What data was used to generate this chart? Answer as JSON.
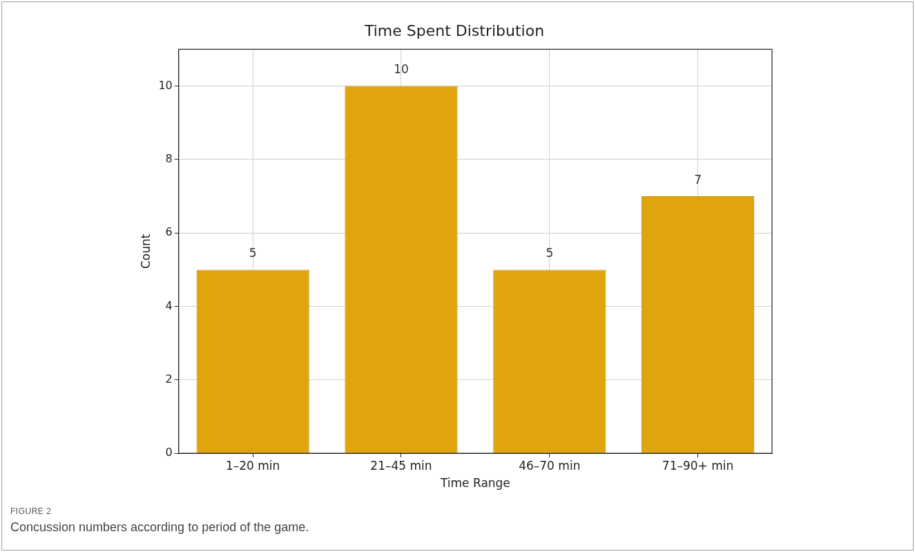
{
  "chart_data": {
    "type": "bar",
    "title": "Time Spent Distribution",
    "xlabel": "Time Range",
    "ylabel": "Count",
    "categories": [
      "1–20 min",
      "21–45 min",
      "46–70 min",
      "71–90+ min"
    ],
    "values": [
      5,
      10,
      5,
      7
    ],
    "color": "#e0a40c",
    "ylim": [
      0,
      11
    ],
    "yticks": [
      0,
      2,
      4,
      6,
      8,
      10
    ],
    "grid": true,
    "data_labels": true,
    "annotations": [
      "FIGURE 2",
      "Concussion numbers according to period of the game."
    ]
  }
}
